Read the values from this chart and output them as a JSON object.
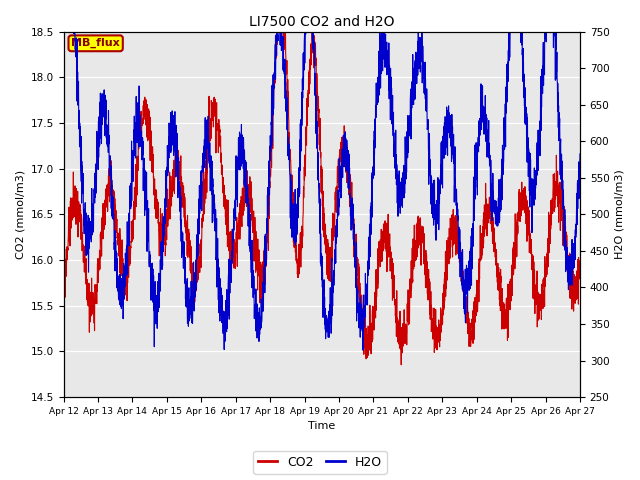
{
  "title": "LI7500 CO2 and H2O",
  "xlabel": "Time",
  "ylabel_left": "CO2 (mmol/m3)",
  "ylabel_right": "H2O (mmol/m3)",
  "co2_ylim": [
    14.5,
    18.5
  ],
  "h2o_ylim": [
    250,
    750
  ],
  "co2_yticks": [
    14.5,
    15.0,
    15.5,
    16.0,
    16.5,
    17.0,
    17.5,
    18.0,
    18.5
  ],
  "h2o_yticks": [
    250,
    300,
    350,
    400,
    450,
    500,
    550,
    600,
    650,
    700,
    750
  ],
  "xtick_labels": [
    "Apr 12",
    "Apr 13",
    "Apr 14",
    "Apr 15",
    "Apr 16",
    "Apr 17",
    "Apr 18",
    "Apr 19",
    "Apr 20",
    "Apr 21",
    "Apr 22",
    "Apr 23",
    "Apr 24",
    "Apr 25",
    "Apr 26",
    "Apr 27"
  ],
  "co2_color": "#cc0000",
  "h2o_color": "#0000cc",
  "legend_label_co2": "CO2",
  "legend_label_h2o": "H2O",
  "annotation_text": "MB_flux",
  "annotation_bg": "#ffff00",
  "annotation_border": "#aa0000",
  "plot_bg": "#e8e8e8",
  "linewidth": 0.8,
  "n_points": 3000,
  "seed": 99
}
